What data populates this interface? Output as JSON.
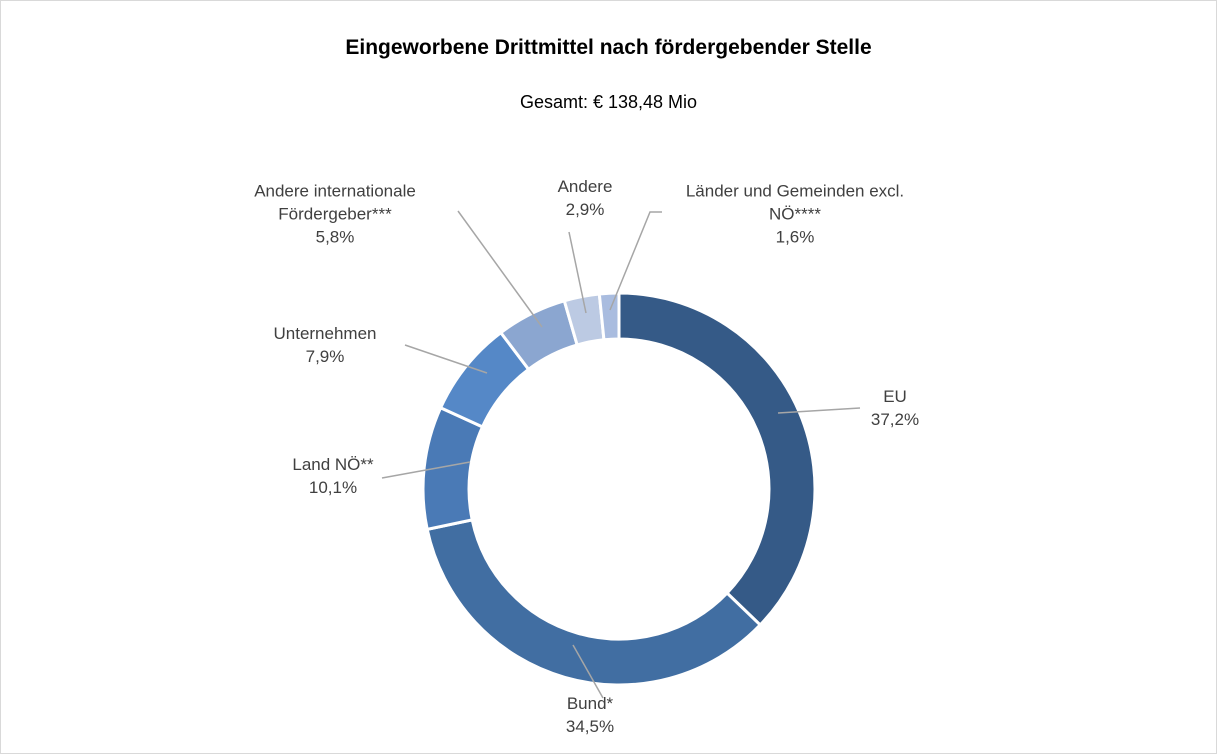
{
  "chart_data": {
    "type": "donut",
    "title": "Eingeworbene Drittmittel nach fördergebender Stelle",
    "subtitle": "Gesamt: € 138,48 Mio",
    "categories": [
      "EU",
      "Bund*",
      "Land NÖ**",
      "Unternehmen",
      "Andere internationale Fördergeber***",
      "Andere",
      "Länder und Gemeinden excl. NÖ****"
    ],
    "values": [
      37.2,
      34.5,
      10.1,
      7.9,
      5.8,
      2.9,
      1.6
    ],
    "value_labels": [
      "37,2%",
      "34,5%",
      "10,1%",
      "7,9%",
      "5,8%",
      "2,9%",
      "1,6%"
    ],
    "colors": [
      "#355a87",
      "#416ea2",
      "#4a7ab6",
      "#5588c7",
      "#8ba6d0",
      "#bccae3",
      "#a9bcdf"
    ]
  }
}
